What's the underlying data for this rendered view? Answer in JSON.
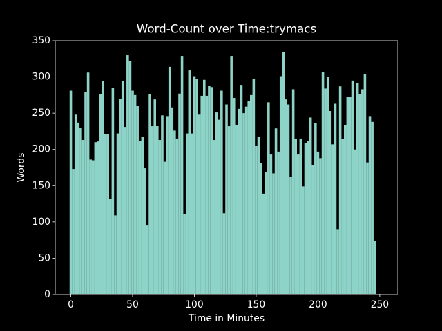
{
  "chart_data": {
    "type": "bar",
    "title": "Word-Count over Time:trymacs",
    "xlabel": "Time in Minutes",
    "ylabel": "Words",
    "color": "#8dd3c7",
    "x": [
      0,
      2,
      4,
      6,
      8,
      10,
      12,
      14,
      16,
      18,
      20,
      22,
      24,
      26,
      28,
      30,
      32,
      34,
      36,
      38,
      40,
      42,
      44,
      46,
      48,
      50,
      52,
      54,
      56,
      58,
      60,
      62,
      64,
      66,
      68,
      70,
      72,
      74,
      76,
      78,
      80,
      82,
      84,
      86,
      88,
      90,
      92,
      94,
      96,
      98,
      100,
      102,
      104,
      106,
      108,
      110,
      112,
      114,
      116,
      118,
      120,
      122,
      124,
      126,
      128,
      130,
      132,
      134,
      136,
      138,
      140,
      142,
      144,
      146,
      148,
      150,
      152,
      154,
      156,
      158,
      160,
      162,
      164,
      166,
      168,
      170,
      172,
      174,
      176,
      178,
      180,
      182,
      184,
      186,
      188,
      190,
      192,
      194,
      196,
      198,
      200,
      202,
      204,
      206,
      208,
      210,
      212,
      214,
      216,
      218,
      220,
      222,
      224,
      226,
      228,
      230,
      232,
      234,
      236,
      238,
      240,
      242,
      244,
      246
    ],
    "values": [
      281,
      173,
      248,
      237,
      230,
      213,
      279,
      306,
      186,
      185,
      210,
      211,
      276,
      294,
      221,
      221,
      132,
      285,
      109,
      222,
      270,
      294,
      231,
      330,
      322,
      281,
      275,
      260,
      212,
      217,
      174,
      95,
      276,
      232,
      269,
      233,
      213,
      247,
      183,
      246,
      314,
      258,
      226,
      215,
      277,
      329,
      111,
      222,
      309,
      222,
      301,
      297,
      248,
      274,
      296,
      274,
      288,
      286,
      213,
      251,
      241,
      281,
      112,
      262,
      232,
      329,
      271,
      234,
      256,
      289,
      250,
      259,
      267,
      275,
      297,
      205,
      217,
      181,
      139,
      169,
      265,
      193,
      167,
      229,
      197,
      301,
      334,
      269,
      262,
      162,
      283,
      215,
      193,
      215,
      149,
      209,
      212,
      244,
      178,
      236,
      197,
      188,
      307,
      284,
      300,
      253,
      207,
      263,
      90,
      287,
      214,
      234,
      272,
      272,
      295,
      200,
      292,
      276,
      283,
      304,
      182,
      246,
      238,
      74
    ],
    "xlim": [
      -12.6,
      264.6
    ],
    "ylim": [
      0,
      350
    ],
    "xticks": [
      0,
      50,
      100,
      150,
      200,
      250
    ],
    "yticks": [
      0,
      50,
      100,
      150,
      200,
      250,
      300,
      350
    ]
  }
}
